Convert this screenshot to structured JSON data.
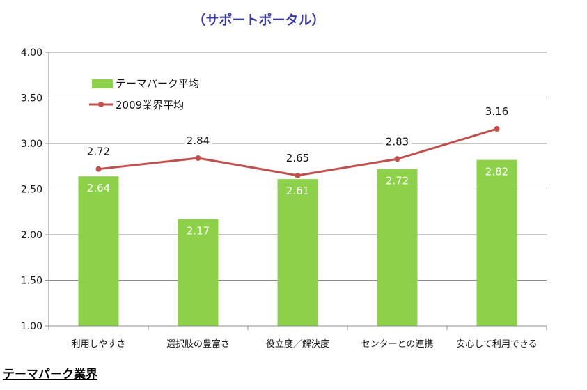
{
  "chart_data": {
    "type": "bar",
    "title": "（サポートポータル）",
    "categories": [
      "利用しやすさ",
      "選択肢の豊富さ",
      "役立度／解決度",
      "センターとの連携",
      "安心して利用できる"
    ],
    "series": [
      {
        "name": "テーマパーク平均",
        "type": "bar",
        "color": "#8dd14b",
        "values": [
          2.64,
          2.17,
          2.61,
          2.72,
          2.82
        ]
      },
      {
        "name": "2009業界平均",
        "type": "line",
        "color": "#c0504d",
        "values": [
          2.72,
          2.84,
          2.65,
          2.83,
          3.16
        ]
      }
    ],
    "ylim": [
      1.0,
      4.0
    ],
    "yticks": [
      "1.00",
      "1.50",
      "2.00",
      "2.50",
      "3.00",
      "3.50",
      "4.00"
    ],
    "grid": true,
    "legend": "top-left"
  },
  "footer_text": "テーマパーク業界"
}
